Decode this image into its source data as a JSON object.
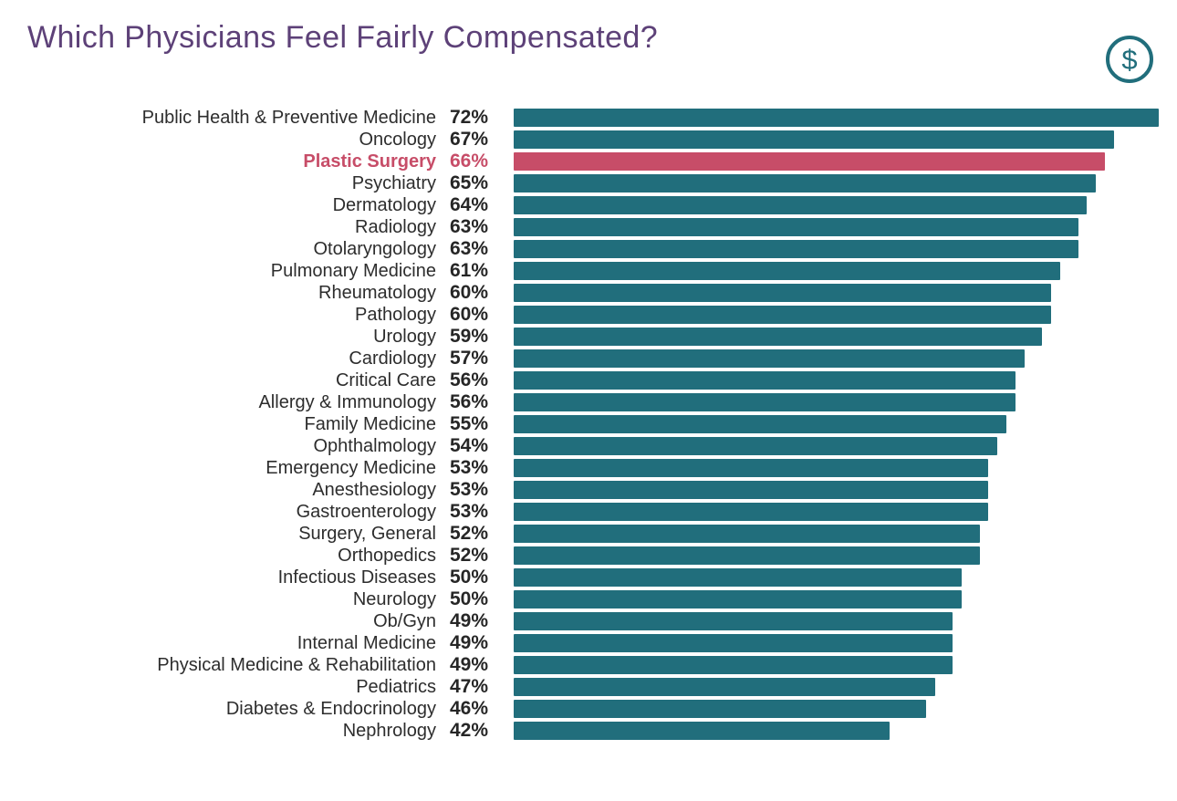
{
  "title": "Which Physicians Feel Fairly Compensated?",
  "icon": {
    "name": "dollar-icon",
    "symbol": "$"
  },
  "colors": {
    "teal": "#216E7C",
    "highlight": "#C74D68",
    "title": "#5D4178",
    "label": "#2D2D2D",
    "value": "#262626"
  },
  "chart_data": {
    "type": "bar",
    "orientation": "horizontal",
    "title": "Which Physicians Feel Fairly Compensated?",
    "value_suffix": "%",
    "xlim": [
      0,
      72
    ],
    "grid": false,
    "legend": false,
    "highlighted_category": "Plastic Surgery",
    "categories": [
      "Public Health & Preventive Medicine",
      "Oncology",
      "Plastic Surgery",
      "Psychiatry",
      "Dermatology",
      "Radiology",
      "Otolaryngology",
      "Pulmonary Medicine",
      "Rheumatology",
      "Pathology",
      "Urology",
      "Cardiology",
      "Critical Care",
      "Allergy & Immunology",
      "Family Medicine",
      "Ophthalmology",
      "Emergency Medicine",
      "Anesthesiology",
      "Gastroenterology",
      "Surgery, General",
      "Orthopedics",
      "Infectious Diseases",
      "Neurology",
      "Ob/Gyn",
      "Internal Medicine",
      "Physical Medicine & Rehabilitation",
      "Pediatrics",
      "Diabetes & Endocrinology",
      "Nephrology"
    ],
    "values": [
      72,
      67,
      66,
      65,
      64,
      63,
      63,
      61,
      60,
      60,
      59,
      57,
      56,
      56,
      55,
      54,
      53,
      53,
      53,
      52,
      52,
      50,
      50,
      49,
      49,
      49,
      47,
      46,
      42
    ]
  }
}
